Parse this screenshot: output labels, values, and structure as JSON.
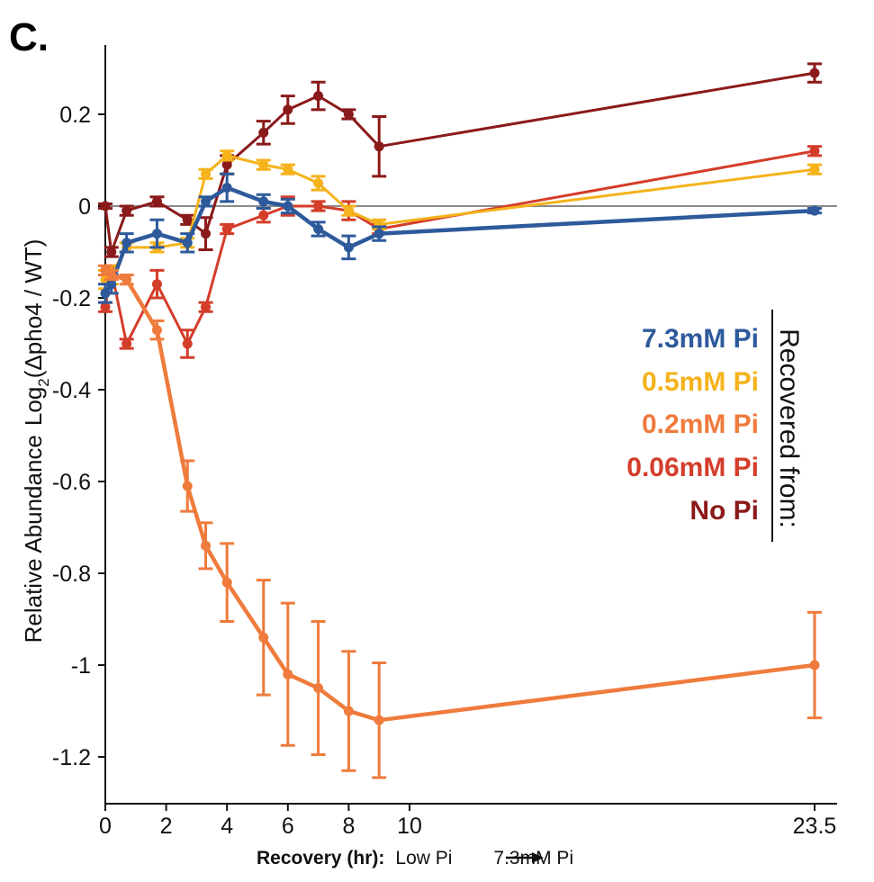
{
  "panel_label": "C.",
  "chart_data": {
    "type": "line",
    "ylabel": "Relative Abundance",
    "ylabel_log": "Log",
    "ylabel_log_sub": "2",
    "ylabel_ratio": "(Δpho4 / WT)",
    "xlabel_bold": "Recovery (hr):",
    "xlabel_from": "Low Pi",
    "xlabel_to": "7.3mM  Pi",
    "ylim": [
      -1.3,
      0.35
    ],
    "y_ticks": [
      0.2,
      0,
      -0.2,
      -0.4,
      -0.6,
      -0.8,
      -1,
      -1.2
    ],
    "y_tick_labels": [
      "0.2",
      "0",
      "-0.2",
      "-0.4",
      "-0.6",
      "-0.8",
      "-1",
      "-1.2"
    ],
    "x_ticks": [
      0,
      2,
      4,
      6,
      8,
      10,
      23.5
    ],
    "x_tick_labels": [
      "0",
      "2",
      "4",
      "6",
      "8",
      "10",
      "23.5"
    ],
    "x_axis_break": "10 to 23.5 compressed",
    "reference_line_y": 0,
    "legend_title": "Recovered from:",
    "legend_placement": "right",
    "series": [
      {
        "name": "7.3mM Pi",
        "color": "#2e5a9c",
        "x": [
          0,
          0.2,
          0.7,
          1.7,
          2.7,
          3.3,
          4,
          5.2,
          6,
          7,
          8,
          9,
          23.5
        ],
        "y": [
          -0.19,
          -0.17,
          -0.08,
          -0.06,
          -0.08,
          0.01,
          0.04,
          0.01,
          0.0,
          -0.05,
          -0.09,
          -0.06,
          -0.01
        ],
        "err": [
          0.02,
          0.02,
          0.02,
          0.03,
          0.02,
          0.01,
          0.03,
          0.015,
          0.015,
          0.015,
          0.025,
          0.015,
          0.005
        ]
      },
      {
        "name": "0.5mM Pi",
        "color": "#f5b21b",
        "x": [
          0,
          0.2,
          0.7,
          1.7,
          2.7,
          3.3,
          4,
          5.2,
          6,
          7,
          8,
          9,
          23.5
        ],
        "y": [
          -0.16,
          -0.15,
          -0.09,
          -0.09,
          -0.08,
          0.07,
          0.11,
          0.09,
          0.08,
          0.05,
          -0.01,
          -0.04,
          0.08
        ],
        "err": [
          0.02,
          0.02,
          0.01,
          0.01,
          0.01,
          0.01,
          0.01,
          0.01,
          0.01,
          0.015,
          0.01,
          0.01,
          0.01
        ]
      },
      {
        "name": "0.2mM Pi",
        "color": "#ef7b3c",
        "x": [
          0,
          0.2,
          0.7,
          1.7,
          2.7,
          3.3,
          4,
          5.2,
          6,
          7,
          8,
          9,
          23.5
        ],
        "y": [
          -0.14,
          -0.15,
          -0.16,
          -0.27,
          -0.61,
          -0.74,
          -0.82,
          -0.94,
          -1.02,
          -1.05,
          -1.1,
          -1.12,
          -1.0
        ],
        "err": [
          0.01,
          0.01,
          0.01,
          0.02,
          0.055,
          0.05,
          0.085,
          0.125,
          0.155,
          0.145,
          0.13,
          0.125,
          0.115
        ]
      },
      {
        "name": "0.06mM Pi",
        "color": "#d43d2a",
        "x": [
          0,
          0.2,
          0.7,
          1.7,
          2.7,
          3.3,
          4,
          5.2,
          6,
          7,
          8,
          9,
          23.5
        ],
        "y": [
          -0.22,
          -0.14,
          -0.3,
          -0.17,
          -0.3,
          -0.22,
          -0.05,
          -0.02,
          0.0,
          0.0,
          -0.01,
          -0.05,
          0.12
        ],
        "err": [
          0.01,
          0.01,
          0.01,
          0.03,
          0.03,
          0.01,
          0.01,
          0.015,
          0.02,
          0.01,
          0.02,
          0.01,
          0.01
        ]
      },
      {
        "name": "No Pi",
        "color": "#8b1a1a",
        "x": [
          0,
          0.2,
          0.7,
          1.7,
          2.7,
          3.3,
          4,
          5.2,
          6,
          7,
          8,
          9,
          23.5
        ],
        "y": [
          0.0,
          -0.1,
          -0.01,
          0.01,
          -0.03,
          -0.06,
          0.09,
          0.16,
          0.21,
          0.24,
          0.2,
          0.13,
          0.29
        ],
        "err": [
          0.005,
          0.01,
          0.01,
          0.01,
          0.01,
          0.035,
          0.02,
          0.025,
          0.03,
          0.03,
          0.01,
          0.065,
          0.02
        ]
      }
    ]
  }
}
